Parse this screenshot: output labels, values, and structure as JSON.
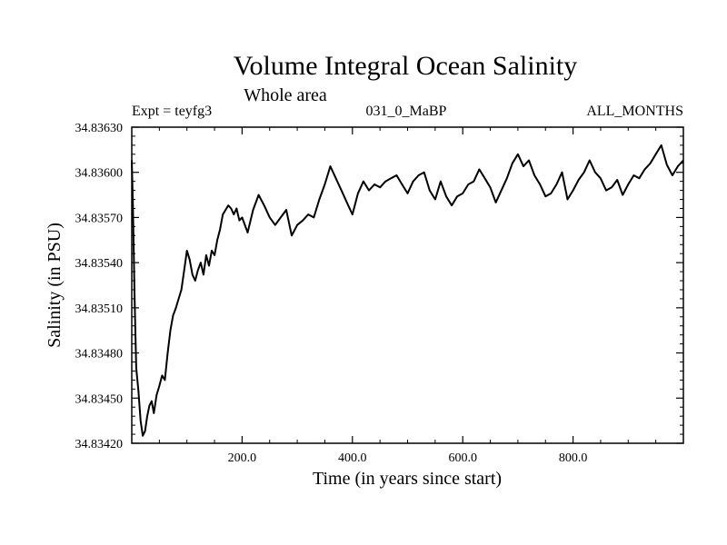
{
  "colors": {
    "line": "#000000",
    "background": "#ffffff"
  },
  "chart_data": {
    "type": "line",
    "title": "Volume Integral Ocean Salinity",
    "subtitle": "Whole area",
    "annotations": {
      "left": "Expt = teyfg3",
      "center": "031_0_MaBP",
      "right": "ALL_MONTHS"
    },
    "xlabel": "Time (in years since start)",
    "ylabel": "Salinity (in PSU)",
    "xlim": [
      0,
      1000
    ],
    "ylim": [
      34.8342,
      34.8363
    ],
    "xticks": [
      200,
      400,
      600,
      800
    ],
    "xtick_labels": [
      "200.0",
      "400.0",
      "600.0",
      "800.0"
    ],
    "yticks": [
      34.8342,
      34.8345,
      34.8348,
      34.8351,
      34.8354,
      34.8357,
      34.836,
      34.8363
    ],
    "ytick_labels": [
      "34.83420",
      "34.83450",
      "34.83480",
      "34.83510",
      "34.83540",
      "34.83570",
      "34.83600",
      "34.83630"
    ],
    "series": [
      {
        "name": "salinity",
        "x": [
          0,
          2,
          5,
          8,
          12,
          16,
          20,
          24,
          28,
          32,
          36,
          40,
          45,
          50,
          55,
          60,
          65,
          70,
          75,
          80,
          85,
          90,
          95,
          100,
          105,
          110,
          115,
          120,
          125,
          130,
          135,
          140,
          145,
          150,
          155,
          160,
          165,
          170,
          175,
          180,
          185,
          190,
          195,
          200,
          210,
          220,
          230,
          240,
          250,
          260,
          270,
          280,
          290,
          300,
          310,
          320,
          330,
          340,
          350,
          360,
          370,
          380,
          390,
          400,
          410,
          420,
          430,
          440,
          450,
          460,
          470,
          480,
          490,
          500,
          510,
          520,
          530,
          540,
          550,
          560,
          570,
          580,
          590,
          600,
          610,
          620,
          630,
          640,
          650,
          660,
          670,
          680,
          690,
          700,
          710,
          720,
          730,
          740,
          750,
          760,
          770,
          780,
          790,
          800,
          810,
          820,
          830,
          840,
          850,
          860,
          870,
          880,
          890,
          900,
          910,
          920,
          930,
          940,
          950,
          960,
          970,
          980,
          990,
          1000
        ],
        "values": [
          34.83608,
          34.8358,
          34.8352,
          34.8347,
          34.83455,
          34.83435,
          34.83425,
          34.83428,
          34.83438,
          34.83445,
          34.83448,
          34.8344,
          34.83452,
          34.83458,
          34.83465,
          34.83462,
          34.8348,
          34.83495,
          34.83505,
          34.8351,
          34.83516,
          34.83522,
          34.83535,
          34.83548,
          34.83542,
          34.83532,
          34.83528,
          34.83535,
          34.8354,
          34.83532,
          34.83545,
          34.83538,
          34.83548,
          34.83545,
          34.83555,
          34.83562,
          34.83572,
          34.83575,
          34.83578,
          34.83576,
          34.83572,
          34.83576,
          34.83568,
          34.8357,
          34.8356,
          34.83575,
          34.83585,
          34.83578,
          34.8357,
          34.83565,
          34.8357,
          34.83575,
          34.83558,
          34.83565,
          34.83568,
          34.83572,
          34.8357,
          34.83582,
          34.83592,
          34.83604,
          34.83596,
          34.83588,
          34.8358,
          34.83572,
          34.83586,
          34.83594,
          34.83588,
          34.83592,
          34.8359,
          34.83594,
          34.83596,
          34.83598,
          34.83592,
          34.83586,
          34.83594,
          34.83598,
          34.836,
          34.83588,
          34.83582,
          34.83594,
          34.83584,
          34.83578,
          34.83584,
          34.83586,
          34.83592,
          34.83594,
          34.83602,
          34.83596,
          34.8359,
          34.8358,
          34.83588,
          34.83596,
          34.83606,
          34.83612,
          34.83604,
          34.83608,
          34.83598,
          34.83592,
          34.83584,
          34.83586,
          34.83592,
          34.836,
          34.83582,
          34.83588,
          34.83595,
          34.836,
          34.83608,
          34.836,
          34.83596,
          34.83588,
          34.8359,
          34.83595,
          34.83585,
          34.83592,
          34.83598,
          34.83596,
          34.83602,
          34.83606,
          34.83612,
          34.83618,
          34.83605,
          34.83598,
          34.83604,
          34.83608
        ]
      }
    ]
  }
}
